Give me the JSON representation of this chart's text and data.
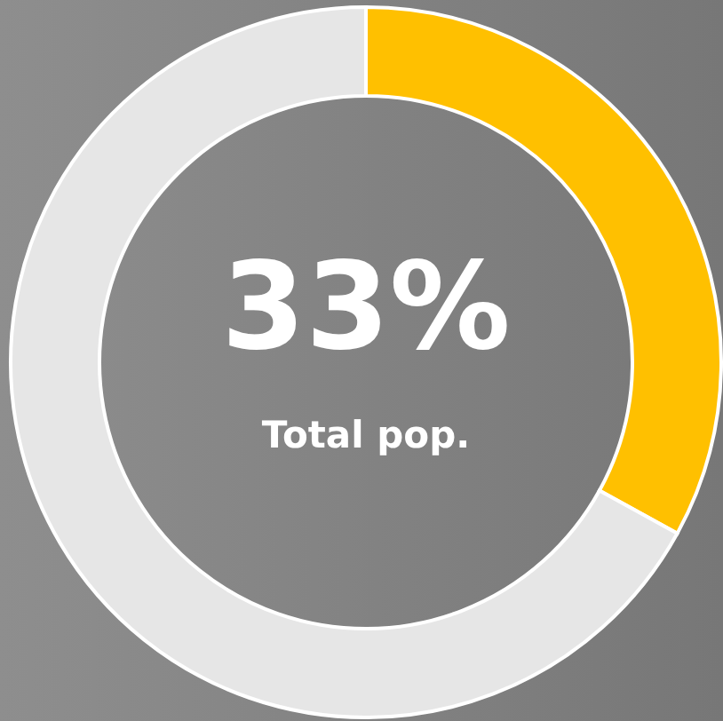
{
  "chart_data": {
    "type": "donut",
    "categories": [
      null,
      null
    ],
    "values": [
      33,
      67
    ],
    "colors": [
      "#ffc000",
      "#e6e6e6"
    ],
    "value_labels": [
      "33%",
      null
    ],
    "annotations": [
      "Total pop."
    ]
  }
}
